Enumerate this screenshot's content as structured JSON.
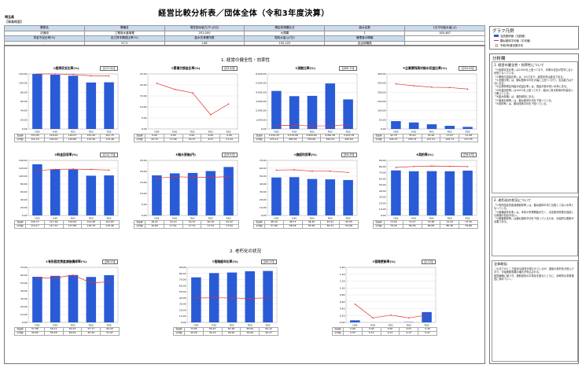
{
  "header": {
    "title": "経営比較分析表／団体全体（令和3年度決算）",
    "prefecture": "埼玉県",
    "business_name": "【事業概要】"
  },
  "info_table": {
    "row1": [
      {
        "label": "業務名",
        "value": "法適用"
      },
      {
        "label": "業種名",
        "value": "工業用水道事業"
      },
      {
        "label": "現在配水能力(千㎥/日)",
        "value": "253,000"
      },
      {
        "label": "理由別規模区分",
        "value": "大規模"
      },
      {
        "label": "給水区数",
        "value": "1"
      },
      {
        "label": "1日平均給水量(㎥)",
        "value": "185,487"
      }
    ],
    "row2": [
      {
        "label": "資金不足比率(%)",
        "value": "-"
      },
      {
        "label": "自己資本構成比率(%)",
        "value": "97.5"
      },
      {
        "label": "給水先事業所数",
        "value": "148"
      },
      {
        "label": "契約水量(㎥/日)",
        "value": "192,225"
      },
      {
        "label": "管理者の情報",
        "value": "自治体職員"
      }
    ]
  },
  "sections": {
    "s1": "1. 経営の健全性・効率性",
    "s2": "2. 老朽化の状況"
  },
  "years": [
    "H29",
    "H30",
    "R01",
    "R02",
    "R03"
  ],
  "row_labels": {
    "own": "当該値",
    "avg": "平均値"
  },
  "charts": [
    {
      "id": "c1",
      "title": "①経常収支比率(%)",
      "unit": "【117.41】",
      "ylim": [
        0,
        120
      ],
      "ticks": [
        "0.00",
        "20.00",
        "40.00",
        "60.00",
        "80.00",
        "100.00",
        "120.00"
      ],
      "own": [
        133.0,
        118.24,
        116.07,
        101.26,
        101.75
      ],
      "avg": [
        121.1,
        125.22,
        118.8,
        115.99,
        115.48
      ]
    },
    {
      "id": "c2",
      "title": "②累積欠損金比率(%)",
      "unit": "【23.49】",
      "ylim": [
        0,
        25
      ],
      "ticks": [
        "0.00",
        "5.00",
        "10.00",
        "15.00",
        "20.00",
        "25.00"
      ],
      "own": [
        0.0,
        0.0,
        0.0,
        0.0,
        0.0
      ],
      "avg": [
        20.75,
        17.99,
        16.37,
        6.47,
        11.34
      ]
    },
    {
      "id": "c3",
      "title": "③流動比率(%)",
      "unit": "【495.72】",
      "ylim": [
        0,
        6000
      ],
      "ticks": [
        "0.00",
        "1,000.00",
        "2,000.00",
        "3,000.00",
        "4,000.00",
        "5,000.00",
        "6,000.00"
      ],
      "own": [
        4143.23,
        3576.08,
        3609.6,
        4961.81,
        3223.78
      ],
      "avg": [
        375.14,
        384.59,
        335.8,
        350.04,
        454.64
      ]
    },
    {
      "id": "c4",
      "title": "④企業債残高対給水収益比率(%)",
      "unit": "【231.02】",
      "ylim": [
        0,
        300
      ],
      "ticks": [
        "0.00",
        "50.00",
        "100.00",
        "150.00",
        "200.00",
        "250.00",
        "300.00"
      ],
      "own": [
        42.7,
        35.4,
        25.4,
        17.07,
        11.28
      ],
      "avg": [
        245.37,
        235.75,
        227.51,
        225.73,
        217.35
      ]
    },
    {
      "id": "c5",
      "title": "⑤料金回収率(%)",
      "unit": "【112.73】",
      "ylim": [
        0,
        140
      ],
      "ticks": [
        "0.00",
        "20.00",
        "40.00",
        "60.00",
        "80.00",
        "100.00",
        "120.00",
        "140.00"
      ],
      "own": [
        130.17,
        117.49,
        116.64,
        101.08,
        101.83
      ],
      "avg": [
        114.17,
        117.12,
        117.86,
        116.79,
        115.46
      ]
    },
    {
      "id": "c6",
      "title": "⑥給水原価(円)",
      "unit": "【19.07】",
      "ylim": [
        0,
        25
      ],
      "ticks": [
        "0.00",
        "5.00",
        "10.00",
        "15.00",
        "20.00",
        "25.00"
      ],
      "own": [
        18.21,
        19.13,
        19.31,
        20.16,
        22.02
      ],
      "avg": [
        16.89,
        17.61,
        17.31,
        17.31,
        17.64
      ]
    },
    {
      "id": "c7",
      "title": "⑦施設利用率(%)",
      "unit": "【54.35】",
      "ylim": [
        0,
        70
      ],
      "ticks": [
        "0.00",
        "10.00",
        "20.00",
        "30.00",
        "40.00",
        "50.00",
        "60.00",
        "70.00"
      ],
      "own": [
        48.3,
        48.71,
        46.4,
        45.91,
        45.05
      ],
      "avg": [
        57.68,
        58.04,
        56.36,
        56.31,
        54.68
      ]
    },
    {
      "id": "c8",
      "title": "⑧契約率(%)",
      "unit": "【76.47】",
      "ylim": [
        0,
        90
      ],
      "ticks": [
        "0.00",
        "10.00",
        "20.00",
        "30.00",
        "40.00",
        "50.00",
        "60.00",
        "70.00",
        "80.00",
        "90.00"
      ],
      "own": [
        73.64,
        72.27,
        72.48,
        72.24,
        73.3
      ],
      "avg": [
        78.29,
        80.09,
        80.84,
        80.36,
        79.88
      ]
    },
    {
      "id": "c9",
      "title": "①有形固定資産減価償却率(%)",
      "unit": "【58.25】",
      "ylim": [
        0,
        70
      ],
      "ticks": [
        "0.00",
        "10.00",
        "20.00",
        "30.00",
        "40.00",
        "50.00",
        "60.00",
        "70.00"
      ],
      "own": [
        57.98,
        59.11,
        60.23,
        57.77,
        60.0
      ],
      "avg": [
        56.6,
        56.48,
        60.09,
        50.26,
        51.67
      ]
    },
    {
      "id": "c10",
      "title": "②管路経年化率(%)",
      "unit": "【40.27】",
      "ylim": [
        0,
        90
      ],
      "ticks": [
        "0.00",
        "10.00",
        "20.00",
        "30.00",
        "40.00",
        "50.00",
        "60.00",
        "70.00",
        "80.00",
        "90.00"
      ],
      "own": [
        73.65,
        80.67,
        81.58,
        83.6,
        84.12
      ],
      "avg": [
        40.0,
        40.23,
        39.92,
        39.06,
        40.27
      ]
    },
    {
      "id": "c11",
      "title": "③管路更新率(%)",
      "unit": "【1.22】",
      "ylim": [
        0,
        1.6
      ],
      "ticks": [
        "0.00",
        "0.20",
        "0.40",
        "0.60",
        "0.80",
        "1.00",
        "1.20",
        "1.40",
        "1.60"
      ],
      "own": [
        0.06,
        0.0,
        0.0,
        0.01,
        0.3
      ],
      "avg": [
        0.53,
        0.13,
        0.21,
        0.13,
        0.21
      ]
    }
  ],
  "legend": {
    "title": "グラフ凡例",
    "items": [
      {
        "label": "当該団体値（当該値）",
        "color": "#2a5bd7"
      },
      {
        "label": "類似団体平均値（平均値）",
        "color": "#e33030"
      },
      {
        "label": "【】 令和3年度全国平均",
        "color": "#ffffff"
      }
    ]
  },
  "analysis": {
    "title": "分析欄",
    "blocks": [
      {
        "heading": "1. 経営の健全性・効率性について",
        "text": "「①経常収支比率」は100%を上回っており、本業の収支が黒字に近い状態となっている。\n「②累積欠損金比率」は、0%であり、経営状況は健全である。\n「③流動比率」は、類似団体平均を大幅に上回っており、支払能力は十分にある。\n「④企業債残高対給水収益比率」は、償還が進み低い水準にある。\n「⑤料金回収率」は100%を上回っており、給水に係る費用が料金収入で賄えている。\n「⑥給水原価」は、増加傾向にある。\n「⑦施設利用率」は、類似団体平均を下回っている。\n「⑧契約率」は、類似団体平均を下回っている。"
      },
      {
        "heading": "2. 老朽化の状況について",
        "text": "「①有形固定資産減価償却率」は、類似団体平均と比較して高い水準となっている。\n「②管路経年化率」は、本県の事業開始が古く、法定耐用年数を経過した管路の割合が高い。\n「③管路更新率」は類似団体平均を下回っているため、計画的な更新が必要である。"
      },
      {
        "heading": "全体総括",
        "text": "これまでのところ健全な経営が保たれているが、施設の老朽化が進んでおり、今後更新需要の増大が見込まれる。\n経営戦略に基づき、更新投資の平準化を図るとともに、効率的な事業運営に努めていく。"
      }
    ]
  }
}
